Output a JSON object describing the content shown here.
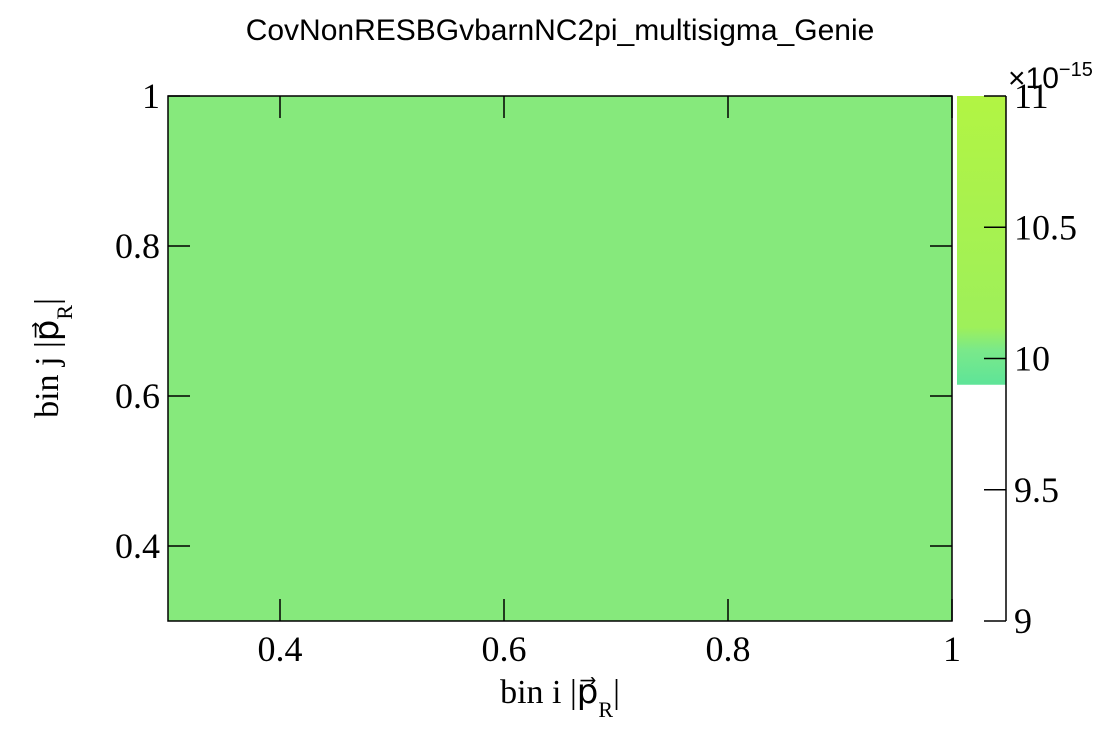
{
  "chart_data": {
    "type": "heatmap",
    "title": "CovNonRESBGvbarnNC2pi_multisigma_Genie",
    "xlabel": "bin i |p⃗_R|",
    "ylabel": "bin j |p⃗_R|",
    "xlim": [
      0.3,
      1.0
    ],
    "ylim": [
      0.3,
      1.0
    ],
    "x_ticks": [
      "0.4",
      "0.6",
      "0.8",
      "1"
    ],
    "y_ticks": [
      "0.4",
      "0.6",
      "0.8",
      "1"
    ],
    "cells": [
      {
        "x_range": [
          0.3,
          1.0
        ],
        "y_range": [
          0.3,
          1.0
        ],
        "value": 9.95,
        "color": "#86e97c"
      }
    ],
    "colorbar": {
      "range": [
        9.0,
        11.0
      ],
      "ticks": [
        "9",
        "9.5",
        "10",
        "10.5",
        "11"
      ],
      "exponent_label": "×10",
      "exponent": "−15"
    }
  }
}
